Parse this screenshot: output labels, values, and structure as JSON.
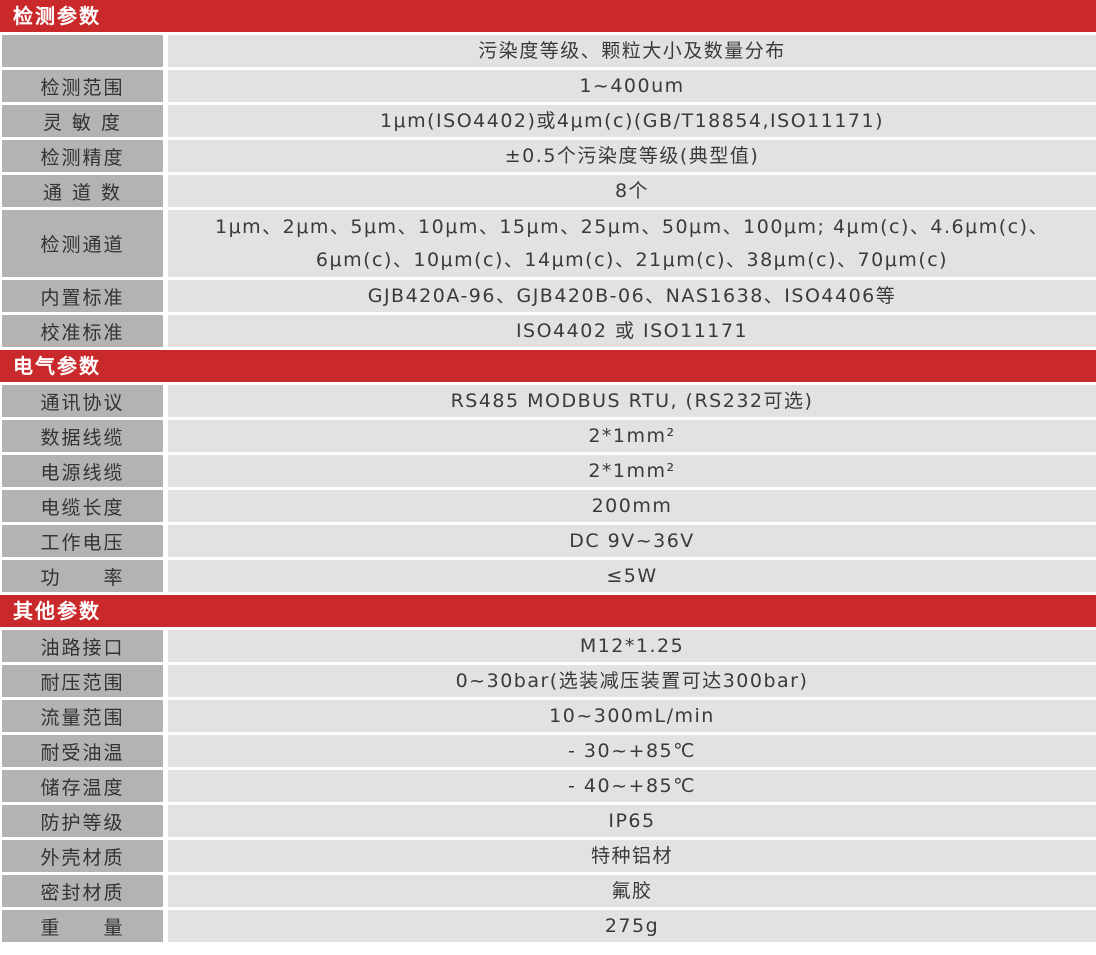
{
  "page": {
    "type": "product-specification-table"
  },
  "colors": {
    "section_header_bg": "#c9292a",
    "section_header_text": "#ffffff",
    "label_cell_bg": "#b4b3b2",
    "value_cell_bg": "#e3e2e1",
    "body_text": "#3a3a3a",
    "divider": "#ffffff"
  },
  "table": {
    "sections": [
      {
        "key": "detection",
        "title": "检测参数",
        "rows": [
          {
            "label": "",
            "value": "污染度等级、颗粒大小及数量分布"
          },
          {
            "label": "检测范围",
            "value": "1~400um"
          },
          {
            "label": "灵 敏 度",
            "value": "1μm(ISO4402)或4μm(c)(GB/T18854,ISO11171)"
          },
          {
            "label": "检测精度",
            "value": "±0.5个污染度等级(典型值)"
          },
          {
            "label": "通 道 数",
            "value": "8个"
          },
          {
            "label": "检测通道",
            "value": "1μm、2μm、5μm、10μm、15μm、25μm、50μm、100μm; 4μm(c)、4.6μm(c)、\n6μm(c)、10μm(c)、14μm(c)、21μm(c)、38μm(c)、70μm(c)",
            "tall": true
          },
          {
            "label": "内置标准",
            "value": "GJB420A-96、GJB420B-06、NAS1638、ISO4406等"
          },
          {
            "label": "校准标准",
            "value": "ISO4402 或 ISO11171"
          }
        ]
      },
      {
        "key": "electrical",
        "title": "电气参数",
        "rows": [
          {
            "label": "通讯协议",
            "value": "RS485 MODBUS RTU, (RS232可选)"
          },
          {
            "label": "数据线缆",
            "value": "2*1mm²"
          },
          {
            "label": "电源线缆",
            "value": "2*1mm²"
          },
          {
            "label": "电缆长度",
            "value": "200mm"
          },
          {
            "label": "工作电压",
            "value": "DC 9V~36V"
          },
          {
            "label": "功　　率",
            "value": "≤5W"
          }
        ]
      },
      {
        "key": "other",
        "title": "其他参数",
        "rows": [
          {
            "label": "油路接口",
            "value": "M12*1.25"
          },
          {
            "label": "耐压范围",
            "value": "0~30bar(选装减压装置可达300bar)"
          },
          {
            "label": "流量范围",
            "value": "10~300mL/min"
          },
          {
            "label": "耐受油温",
            "value": "- 30~+85℃"
          },
          {
            "label": "储存温度",
            "value": "- 40~+85℃"
          },
          {
            "label": "防护等级",
            "value": "IP65"
          },
          {
            "label": "外壳材质",
            "value": "特种铝材"
          },
          {
            "label": "密封材质",
            "value": "氟胶"
          },
          {
            "label": "重　　量",
            "value": "275g"
          }
        ]
      }
    ]
  }
}
